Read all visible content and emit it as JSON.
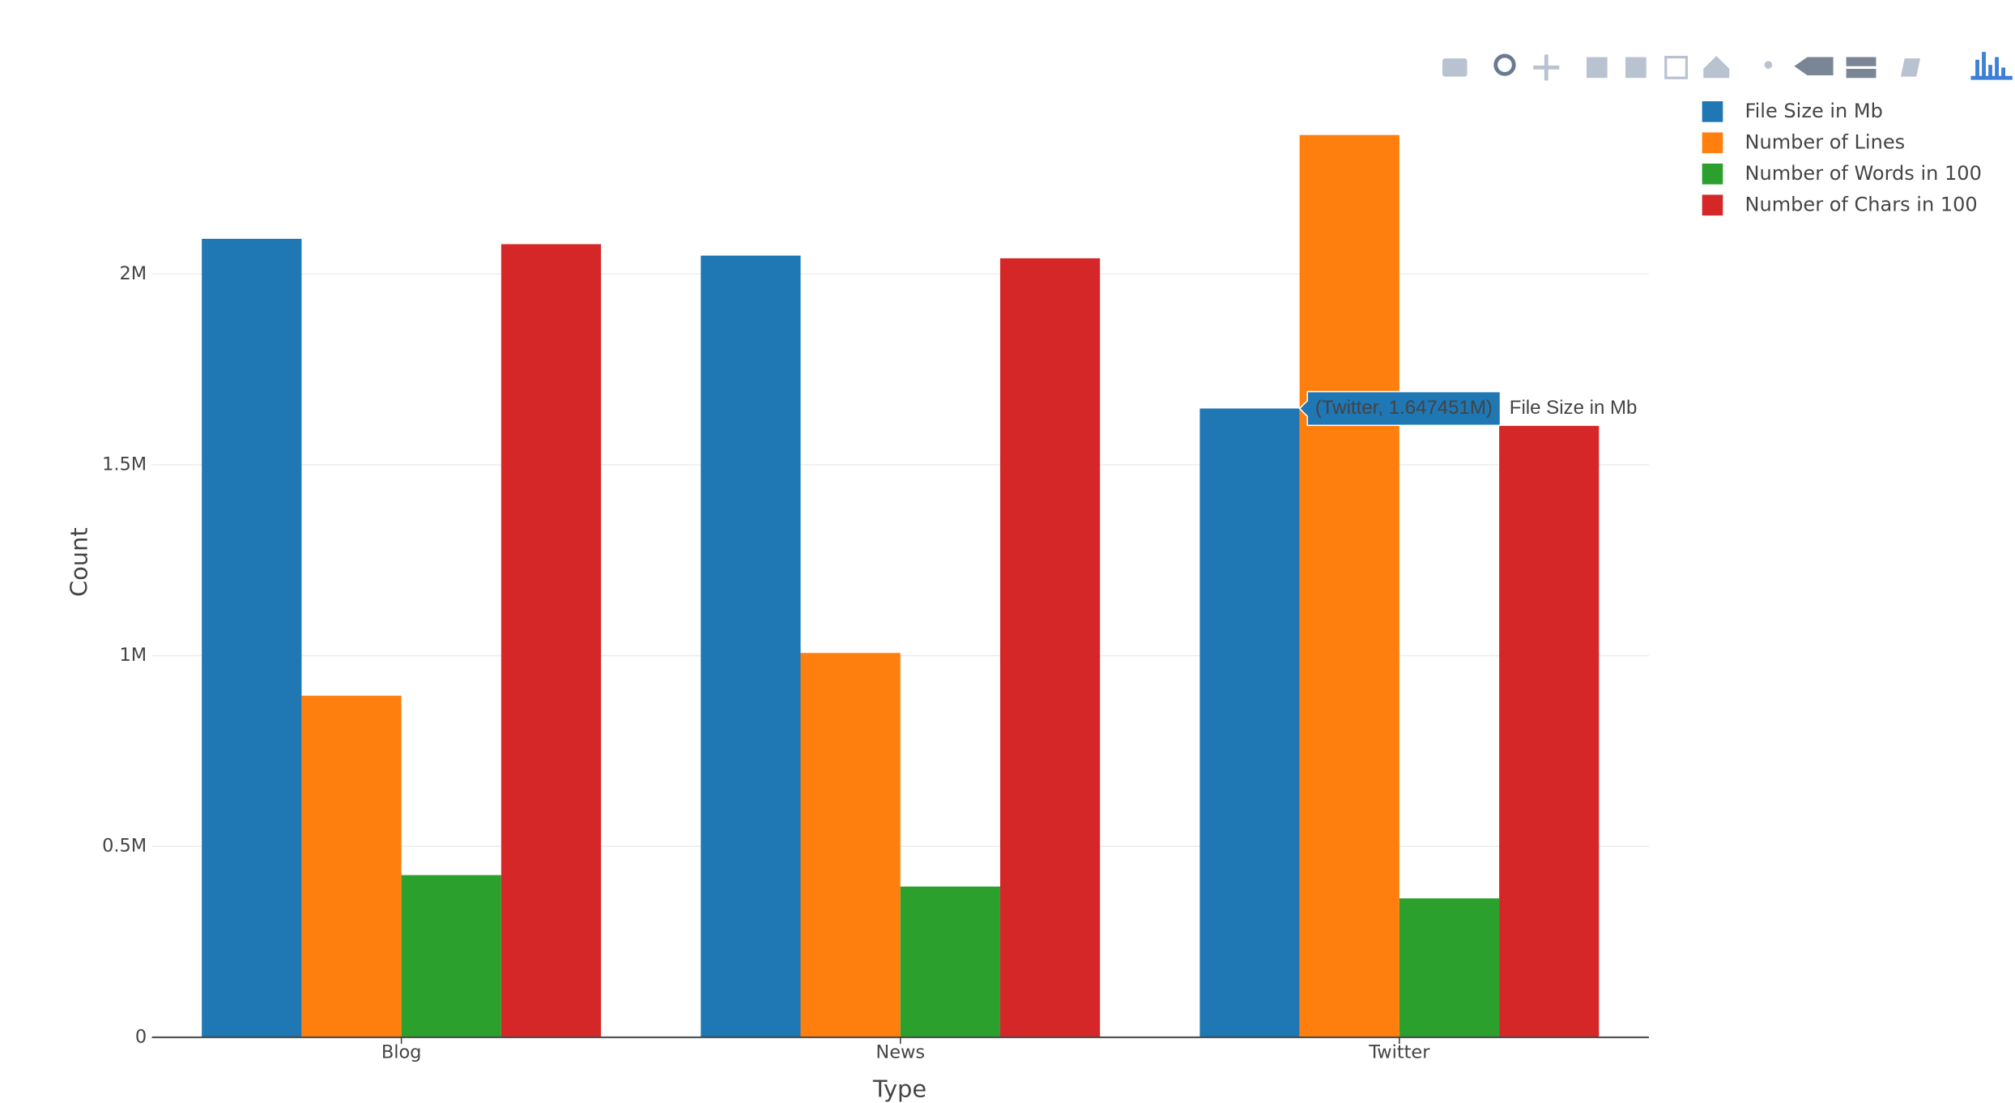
{
  "chart_data": {
    "type": "bar",
    "x_label": "Type",
    "y_label": "Count",
    "categories": [
      "Blog",
      "News",
      "Twitter"
    ],
    "series": [
      {
        "name": "File Size in Mb",
        "color": "#1f77b4",
        "values": [
          2092000,
          2048000,
          1647451
        ]
      },
      {
        "name": "Number of Lines",
        "color": "#ff7f0e",
        "values": [
          895000,
          1007000,
          2364000
        ]
      },
      {
        "name": "Number of Words in 100",
        "color": "#2ca02c",
        "values": [
          425000,
          395000,
          364000
        ]
      },
      {
        "name": "Number of Chars in 100",
        "color": "#d62728",
        "values": [
          2078000,
          2041000,
          1602000
        ]
      }
    ],
    "ylim": [
      0,
      2500000
    ],
    "yticks": [
      0,
      {
        "value": 500000,
        "label": "0.5M"
      },
      {
        "value": 1000000,
        "label": "1M"
      },
      {
        "value": 1500000,
        "label": "1.5M"
      },
      {
        "value": 2000000,
        "label": "2M"
      }
    ],
    "grid": true,
    "legend": "top-right",
    "tooltip": {
      "text": "(Twitter, 1.647451M)",
      "series": 0,
      "category": 2
    }
  }
}
